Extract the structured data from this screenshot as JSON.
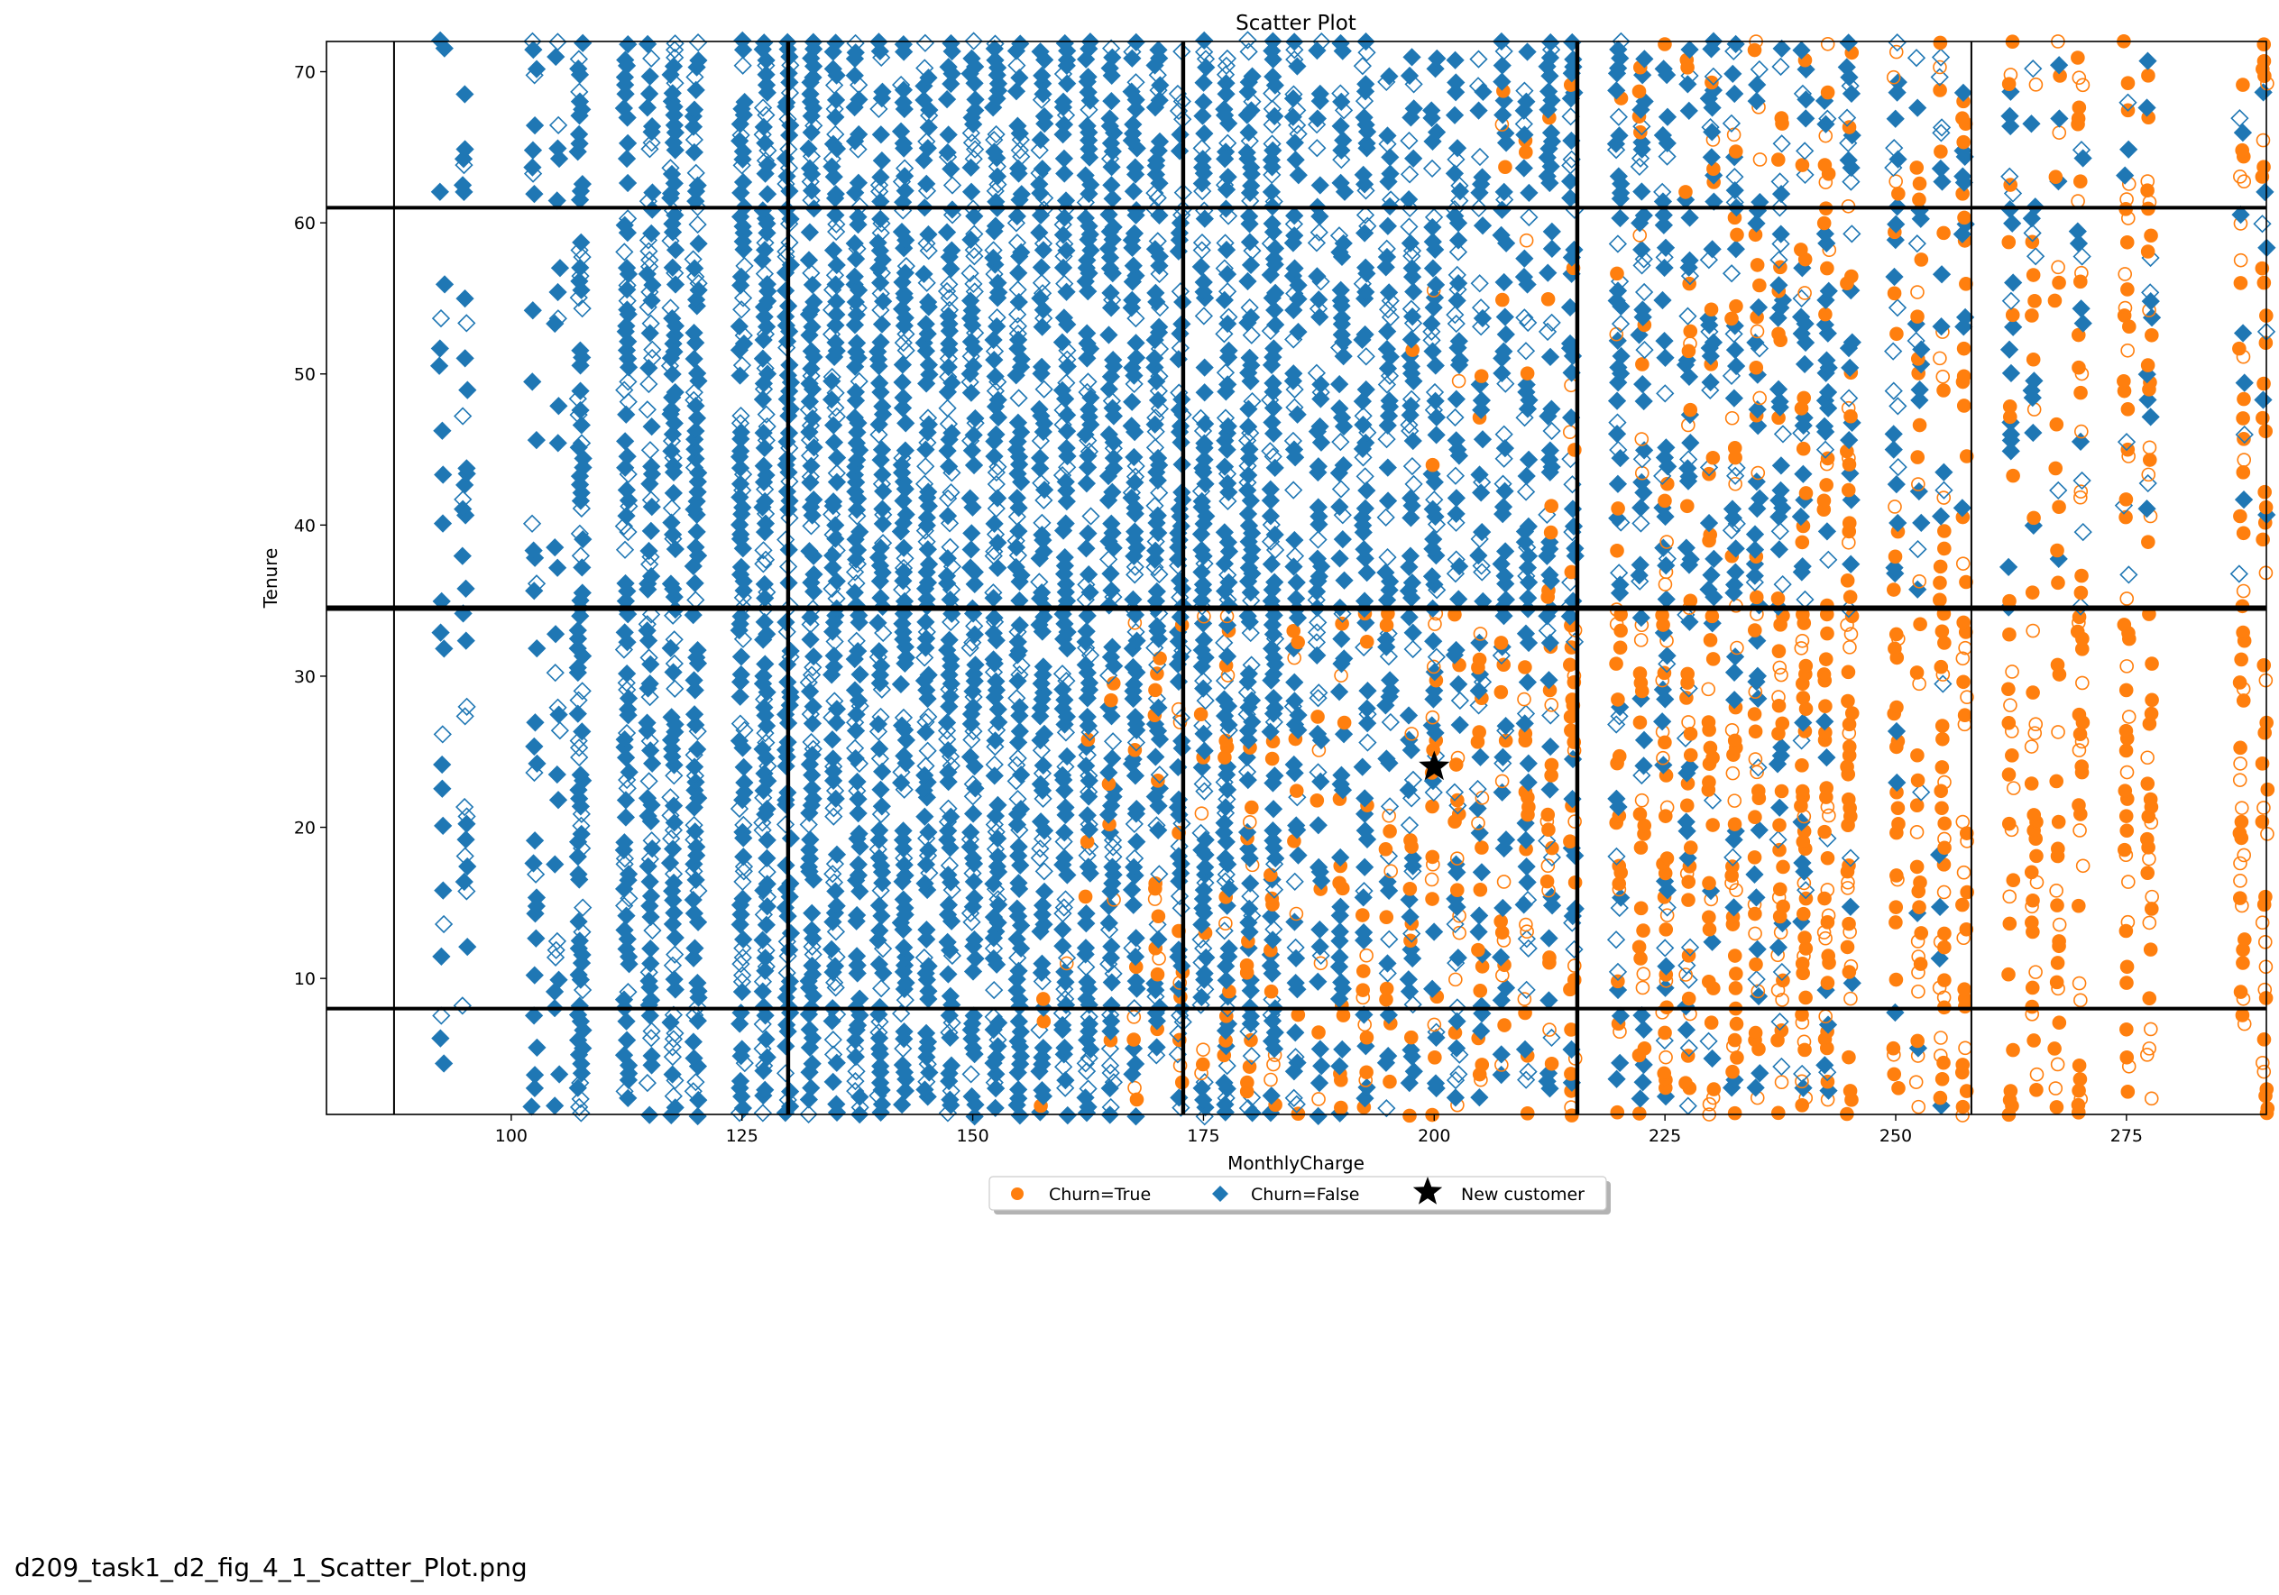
{
  "caption": "d209_task1_d2_fig_4_1_Scatter_Plot.png",
  "chart_data": {
    "type": "scatter",
    "title": "Scatter Plot",
    "xlabel": "MonthlyCharge",
    "ylabel": "Tenure",
    "xlim": [
      79.98,
      290.16
    ],
    "ylim": [
      1,
      72
    ],
    "xticks": [
      100,
      125,
      150,
      175,
      200,
      225,
      250,
      275
    ],
    "yticks": [
      10,
      20,
      30,
      40,
      50,
      60,
      70
    ],
    "grid": false,
    "legend_position": "below plot, centered",
    "legend": [
      "Churn=True",
      "Churn=False",
      "New customer"
    ],
    "colors": {
      "churn_true": "#ff7f0e",
      "churn_false": "#1f77b4",
      "new_customer": "#000000"
    },
    "marker_style": "filled and hollow markers; orange circles for Churn=True, blue diamonds for Churn=False",
    "price_tiers": [
      92.5,
      95,
      102.5,
      105,
      107.5,
      112.5,
      115,
      117.5,
      120,
      125,
      127.5,
      130,
      132.5,
      135,
      137.5,
      140,
      142.5,
      145,
      147.5,
      150,
      152.5,
      155,
      157.5,
      160,
      162.5,
      165,
      167.5,
      170,
      172.5,
      175,
      177.5,
      180,
      182.5,
      185,
      187.5,
      190,
      192.5,
      195,
      197.5,
      200,
      202.5,
      205,
      207.5,
      210,
      212.5,
      215,
      220,
      222.5,
      225,
      227.5,
      230,
      232.5,
      235,
      237.5,
      240,
      242.5,
      245,
      250,
      252.5,
      255,
      257.5,
      262.5,
      265,
      267.5,
      270,
      275,
      277.5,
      287.5,
      290
    ],
    "new_customer": {
      "x": 200,
      "y": 24
    },
    "decision_boundaries": {
      "vertical": [
        87.3,
        130,
        172.8,
        215.5,
        258.2
      ],
      "horizontal": [
        8,
        34.5,
        61
      ]
    }
  }
}
